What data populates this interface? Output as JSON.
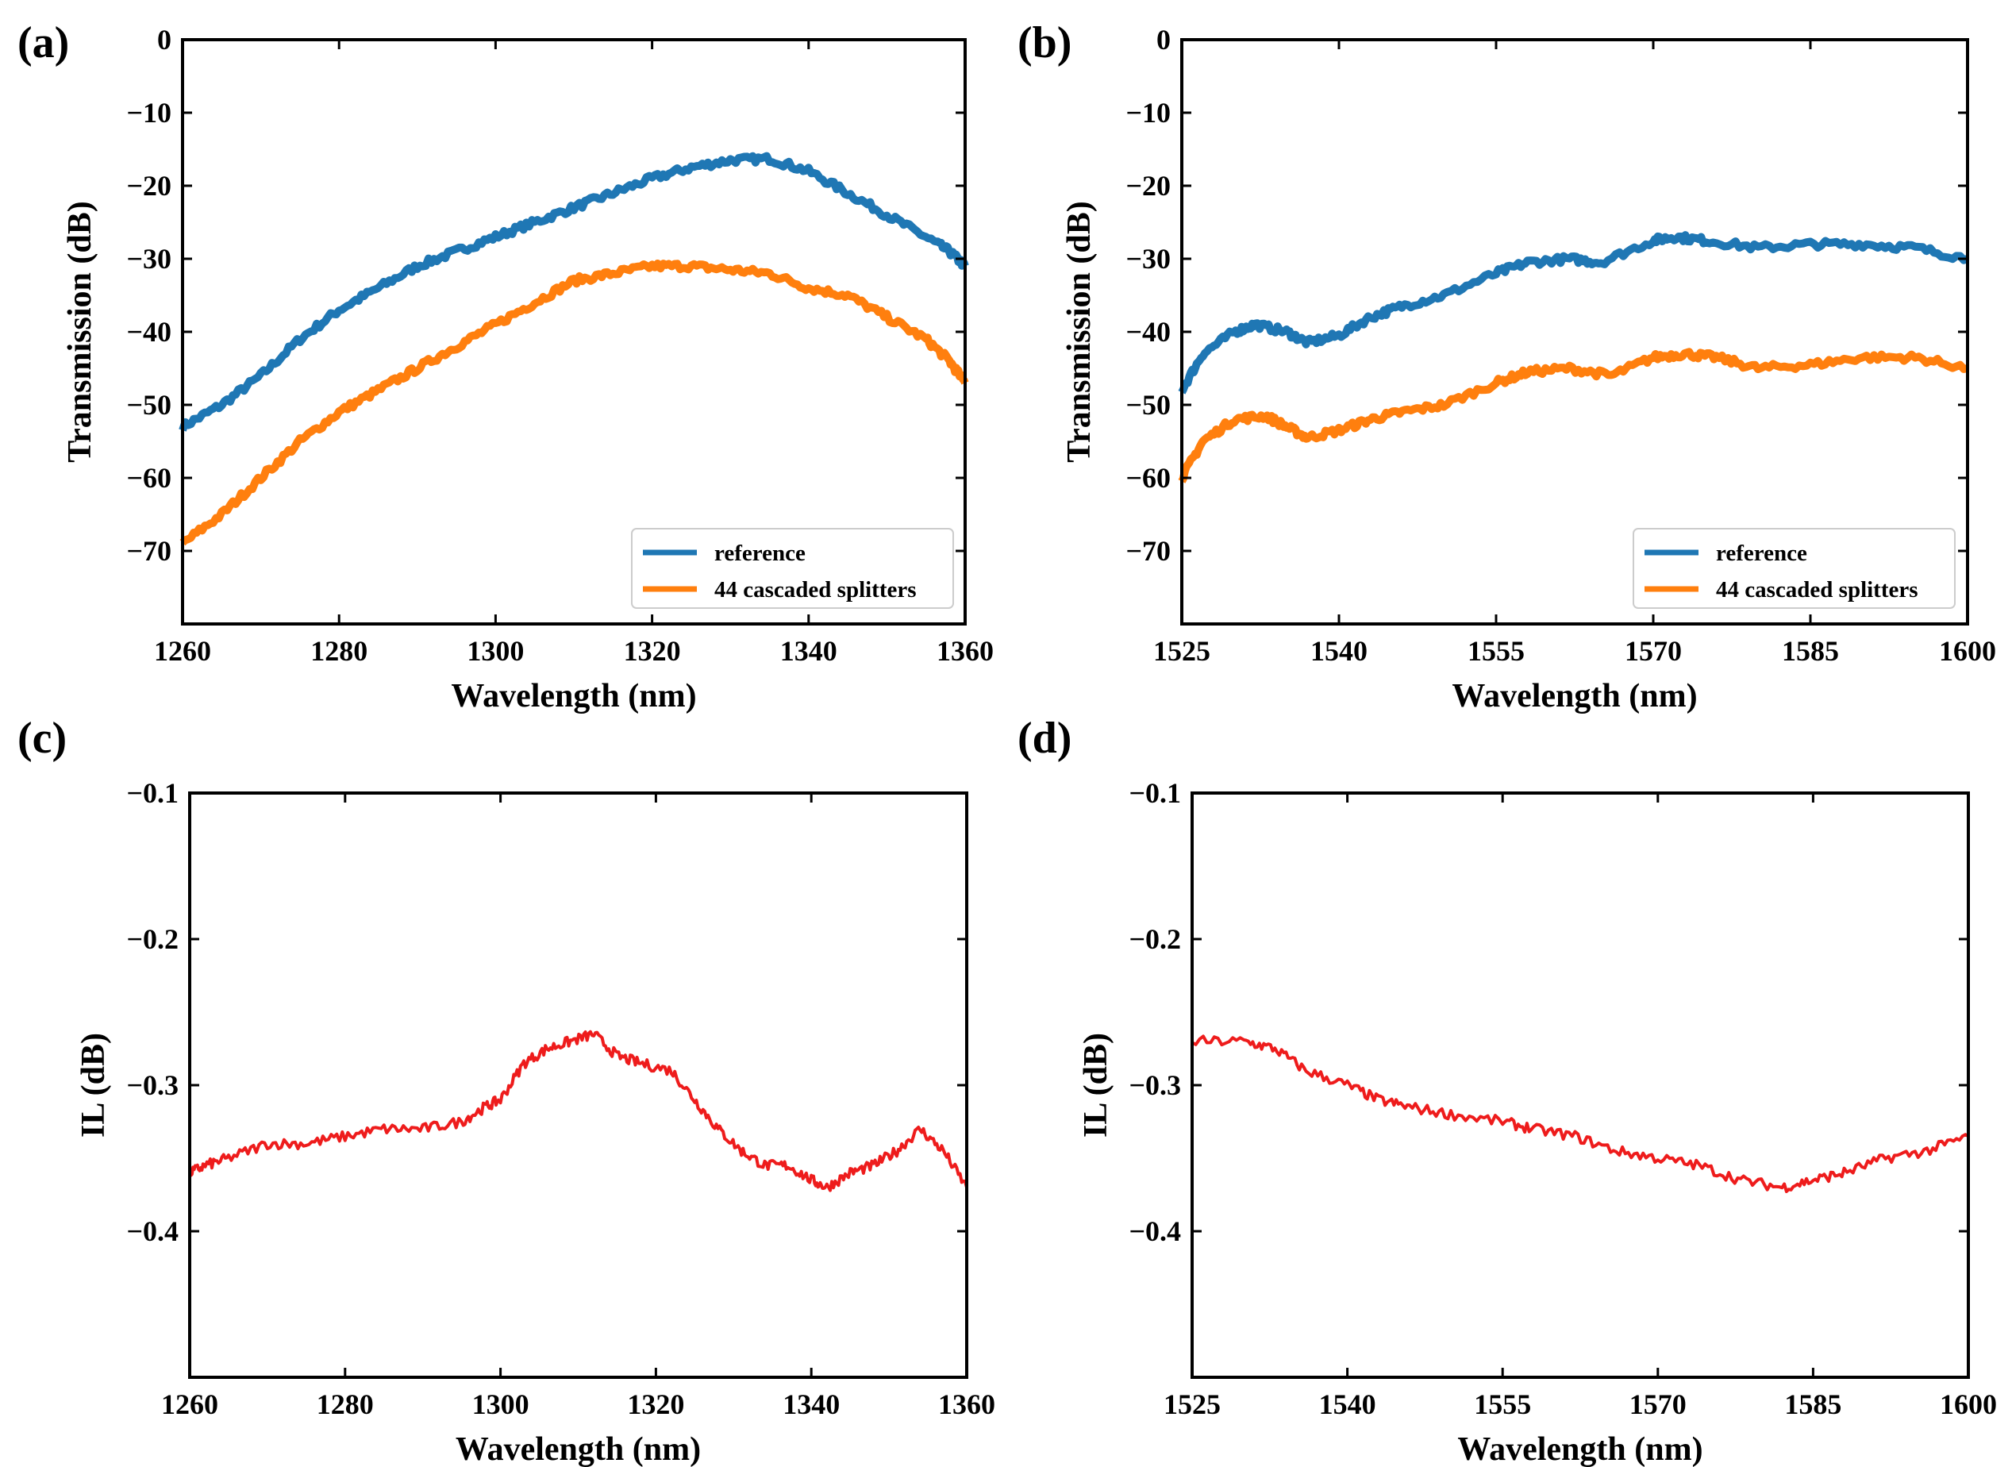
{
  "colors": {
    "reference": "#1f77b4",
    "splitters": "#ff7f0e",
    "il": "#ee1c1c"
  },
  "chart_data": [
    {
      "panel_label": "(a)",
      "type": "line",
      "xlabel": "Wavelength (nm)",
      "ylabel": "Transmission (dB)",
      "xlim": [
        1260,
        1360
      ],
      "ylim": [
        -80,
        0
      ],
      "xticks": [
        1260,
        1280,
        1300,
        1320,
        1340,
        1360
      ],
      "yticks": [
        0,
        -10,
        -20,
        -30,
        -40,
        -50,
        -60,
        -70
      ],
      "legend": "bottom-right",
      "series": [
        {
          "name": "reference",
          "color_key": "reference",
          "x": [
            1260,
            1265,
            1270,
            1275,
            1280,
            1285,
            1290,
            1295,
            1300,
            1305,
            1310,
            1315,
            1320,
            1325,
            1330,
            1335,
            1340,
            1345,
            1350,
            1355,
            1358,
            1360
          ],
          "y": [
            -53,
            -50,
            -46,
            -41,
            -37,
            -34,
            -31,
            -29,
            -27,
            -25,
            -23,
            -21,
            -19,
            -17.5,
            -16.5,
            -16.3,
            -18,
            -21,
            -24,
            -27,
            -29,
            -31
          ]
        },
        {
          "name": "44 cascaded splitters",
          "color_key": "splitters",
          "x": [
            1260,
            1265,
            1270,
            1275,
            1280,
            1285,
            1290,
            1295,
            1300,
            1305,
            1310,
            1315,
            1320,
            1325,
            1330,
            1335,
            1340,
            1345,
            1350,
            1355,
            1358,
            1360
          ],
          "y": [
            -69,
            -65,
            -60,
            -55,
            -51,
            -48,
            -45,
            -42,
            -39,
            -36,
            -33,
            -32,
            -31,
            -31,
            -31.5,
            -32,
            -34,
            -35,
            -38,
            -41,
            -44,
            -47
          ]
        }
      ]
    },
    {
      "panel_label": "(b)",
      "type": "line",
      "xlabel": "Wavelength (nm)",
      "ylabel": "Transmission (dB)",
      "xlim": [
        1525,
        1600
      ],
      "ylim": [
        -80,
        0
      ],
      "xticks": [
        1525,
        1540,
        1555,
        1570,
        1585,
        1600
      ],
      "yticks": [
        0,
        -10,
        -20,
        -30,
        -40,
        -50,
        -60,
        -70
      ],
      "legend": "bottom-right",
      "series": [
        {
          "name": "reference",
          "color_key": "reference",
          "x": [
            1525,
            1527,
            1530,
            1532,
            1535,
            1537,
            1540,
            1543,
            1546,
            1550,
            1555,
            1558,
            1562,
            1565,
            1570,
            1572,
            1575,
            1580,
            1585,
            1590,
            1595,
            1600
          ],
          "y": [
            -48,
            -43,
            -40,
            -39,
            -40,
            -41.5,
            -40.5,
            -38,
            -36.5,
            -35,
            -32,
            -30.5,
            -30,
            -30.5,
            -27.5,
            -27,
            -27.5,
            -28.5,
            -28,
            -28,
            -28.5,
            -30
          ]
        },
        {
          "name": "44 cascaded splitters",
          "color_key": "splitters",
          "x": [
            1525,
            1527,
            1530,
            1533,
            1535,
            1537,
            1540,
            1543,
            1546,
            1550,
            1555,
            1558,
            1562,
            1566,
            1570,
            1573,
            1576,
            1580,
            1585,
            1590,
            1595,
            1600
          ],
          "y": [
            -60,
            -55,
            -52,
            -51.5,
            -53,
            -54.5,
            -53.5,
            -52,
            -51,
            -50,
            -47,
            -45.5,
            -45,
            -46,
            -43.5,
            -43,
            -43.5,
            -45,
            -44.5,
            -43.5,
            -43.5,
            -45
          ]
        }
      ]
    },
    {
      "panel_label": "(c)",
      "type": "line",
      "xlabel": "Wavelength (nm)",
      "ylabel": "IL (dB)",
      "xlim": [
        1260,
        1360
      ],
      "ylim": [
        -0.5,
        -0.1
      ],
      "xticks": [
        1260,
        1280,
        1300,
        1320,
        1340,
        1360
      ],
      "yticks": [
        -0.1,
        -0.2,
        -0.3,
        -0.4
      ],
      "series": [
        {
          "name": "IL",
          "color_key": "il",
          "x": [
            1260,
            1262,
            1265,
            1270,
            1275,
            1280,
            1285,
            1290,
            1295,
            1298,
            1300,
            1303,
            1306,
            1309,
            1312,
            1315,
            1318,
            1322,
            1325,
            1328,
            1331,
            1334,
            1337,
            1340,
            1342,
            1345,
            1348,
            1351,
            1354,
            1357,
            1360
          ],
          "y": [
            -0.36,
            -0.355,
            -0.35,
            -0.34,
            -0.34,
            -0.335,
            -0.33,
            -0.33,
            -0.325,
            -0.315,
            -0.31,
            -0.285,
            -0.275,
            -0.27,
            -0.265,
            -0.28,
            -0.285,
            -0.29,
            -0.31,
            -0.33,
            -0.345,
            -0.355,
            -0.355,
            -0.365,
            -0.37,
            -0.36,
            -0.355,
            -0.345,
            -0.33,
            -0.345,
            -0.37
          ]
        }
      ]
    },
    {
      "panel_label": "(d)",
      "type": "line",
      "xlabel": "Wavelength (nm)",
      "ylabel": "IL (dB)",
      "xlim": [
        1525,
        1600
      ],
      "ylim": [
        -0.5,
        -0.1
      ],
      "xticks": [
        1525,
        1540,
        1555,
        1570,
        1585,
        1600
      ],
      "yticks": [
        -0.1,
        -0.2,
        -0.3,
        -0.4
      ],
      "series": [
        {
          "name": "IL",
          "color_key": "il",
          "x": [
            1525,
            1530,
            1533,
            1536,
            1540,
            1543,
            1546,
            1550,
            1555,
            1558,
            1562,
            1566,
            1570,
            1574,
            1578,
            1582,
            1585,
            1588,
            1592,
            1596,
            1600
          ],
          "y": [
            -0.27,
            -0.27,
            -0.275,
            -0.29,
            -0.3,
            -0.31,
            -0.315,
            -0.32,
            -0.325,
            -0.33,
            -0.335,
            -0.345,
            -0.35,
            -0.355,
            -0.365,
            -0.37,
            -0.365,
            -0.36,
            -0.35,
            -0.345,
            -0.335
          ]
        }
      ]
    }
  ]
}
